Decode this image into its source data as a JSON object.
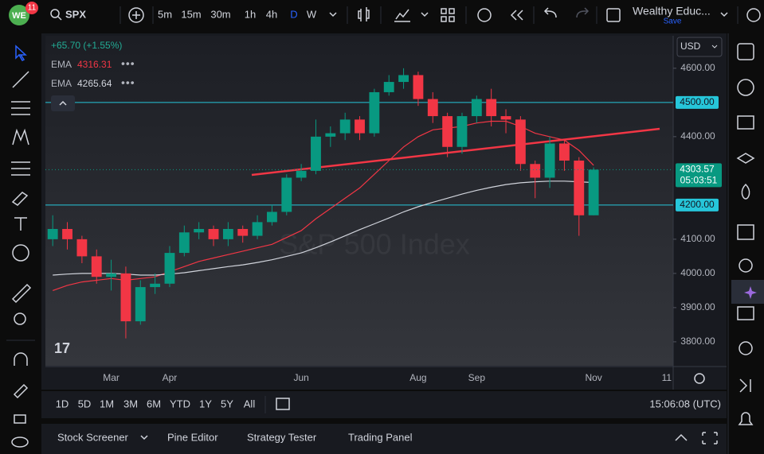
{
  "toolbar": {
    "notifications": "11",
    "symbol": "SPX",
    "intervals": [
      "5m",
      "15m",
      "30m",
      "1h",
      "4h",
      "D",
      "W"
    ],
    "active_interval": 5,
    "layout_name": "Wealthy Educ...",
    "save": "Save"
  },
  "chart_data": {
    "type": "candlestick",
    "watermark": "S&P 500 Index",
    "currency": "USD",
    "change_label": "+65.70 (+1.55%)",
    "categories": [
      null,
      null,
      null,
      null,
      "Mar",
      null,
      null,
      null,
      "Apr",
      null,
      null,
      null,
      null,
      null,
      null,
      null,
      null,
      "Jun",
      null,
      null,
      null,
      null,
      null,
      null,
      null,
      "Aug",
      null,
      null,
      null,
      "Sep",
      null,
      null,
      null,
      null,
      null,
      null,
      null,
      "Nov",
      null,
      null,
      null,
      null,
      "11"
    ],
    "open": [
      4100,
      4130,
      4100,
      4050,
      3990,
      4000,
      3860,
      3960,
      3970,
      4060,
      4120,
      4130,
      4100,
      4130,
      4110,
      4150,
      4180,
      4280,
      4300,
      4400,
      4410,
      4450,
      4410,
      4530,
      4560,
      4580,
      4510,
      4460,
      4370,
      4460,
      4510,
      4460,
      4450,
      4320,
      4280,
      4380,
      4330,
      4170,
      null,
      null,
      null,
      null,
      null
    ],
    "high": [
      4170,
      4150,
      4110,
      4070,
      4040,
      4020,
      3980,
      4000,
      4080,
      4140,
      4150,
      4140,
      4150,
      4140,
      4170,
      4200,
      4290,
      4320,
      4450,
      4430,
      4470,
      4460,
      4540,
      4580,
      4600,
      4590,
      4530,
      4470,
      4470,
      4520,
      4540,
      4480,
      4460,
      4330,
      4400,
      4390,
      4340,
      4310,
      null,
      null,
      null,
      null,
      null
    ],
    "low": [
      4080,
      4070,
      4030,
      3970,
      3950,
      3810,
      3850,
      3940,
      3960,
      4050,
      4100,
      4080,
      4080,
      4090,
      4100,
      4140,
      4170,
      4270,
      4290,
      4370,
      4390,
      4390,
      4400,
      4520,
      4540,
      4490,
      4440,
      4340,
      4350,
      4440,
      4430,
      4410,
      4300,
      4220,
      4250,
      4300,
      4110,
      4170,
      null,
      null,
      null,
      null,
      null
    ],
    "close": [
      4130,
      4100,
      4050,
      3990,
      4000,
      3860,
      3960,
      3970,
      4060,
      4120,
      4130,
      4100,
      4130,
      4110,
      4150,
      4180,
      4280,
      4300,
      4400,
      4410,
      4450,
      4410,
      4530,
      4560,
      4580,
      4510,
      4460,
      4370,
      4460,
      4510,
      4460,
      4450,
      4320,
      4280,
      4380,
      4330,
      4170,
      4303.57,
      null,
      null,
      null,
      null,
      null
    ],
    "up_color": "#089981",
    "down_color": "#f23645",
    "series": [
      {
        "name": "EMA",
        "color": "#f23645",
        "values": [
          3950,
          3965,
          3975,
          3980,
          3985,
          3980,
          3985,
          3990,
          4005,
          4020,
          4035,
          4045,
          4055,
          4065,
          4075,
          4085,
          4105,
          4125,
          4160,
          4190,
          4220,
          4250,
          4290,
          4330,
          4370,
          4400,
          4420,
          4425,
          4430,
          4440,
          4445,
          4445,
          4430,
          4410,
          4400,
          4390,
          4360,
          4316.31,
          null,
          null,
          null,
          null,
          null
        ]
      },
      {
        "name": "EMA",
        "color": "#d1d4dc",
        "values": [
          3995,
          3998,
          4000,
          4000,
          4000,
          3998,
          3995,
          3995,
          3998,
          4002,
          4008,
          4014,
          4020,
          4025,
          4032,
          4040,
          4050,
          4060,
          4075,
          4092,
          4110,
          4128,
          4145,
          4162,
          4180,
          4195,
          4208,
          4220,
          4232,
          4243,
          4252,
          4260,
          4265,
          4268,
          4270,
          4270,
          4268,
          4265.64,
          null,
          null,
          null,
          null,
          null
        ]
      }
    ],
    "levels": [
      {
        "value": 4500,
        "label": "4500.00",
        "color": "#26c6da"
      },
      {
        "value": 4200,
        "label": "4200.00",
        "color": "#26c6da"
      }
    ],
    "trendline": {
      "start": 4288,
      "end": 4423,
      "color": "#f23645"
    },
    "countdown": "05:03:51",
    "ylim": [
      3730,
      4695
    ],
    "yticks": [
      {
        "value": 3800,
        "label": "3800.00"
      },
      {
        "value": 3900,
        "label": "3900.00"
      },
      {
        "value": 4000,
        "label": "4000.00"
      },
      {
        "value": 4100,
        "label": "4100.00"
      },
      {
        "value": 4400,
        "label": "4400.00"
      },
      {
        "value": 4600,
        "label": "4600.00"
      }
    ]
  },
  "bottom_bar": {
    "ranges": [
      "1D",
      "5D",
      "1M",
      "3M",
      "6M",
      "YTD",
      "1Y",
      "5Y",
      "All"
    ],
    "clock": "15:06:08 (UTC)"
  },
  "panel_tabs": [
    "Stock Screener",
    "Pine Editor",
    "Strategy Tester",
    "Trading Panel"
  ]
}
